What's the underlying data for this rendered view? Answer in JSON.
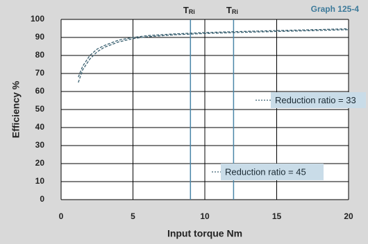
{
  "chart_data": {
    "type": "line",
    "graph_id": "Graph 125-4",
    "xlabel": "Input torque   Nm",
    "ylabel": "Efficiency %",
    "x": [
      1.2,
      1.5,
      2,
      2.5,
      3,
      4,
      5,
      6,
      8,
      10,
      12,
      15,
      18,
      20
    ],
    "series": [
      {
        "name": "Reduction ratio = 33",
        "color": "#3c6272",
        "values": [
          68,
          74,
          80,
          83.5,
          85.5,
          88.5,
          90,
          91,
          92,
          92.7,
          93.2,
          93.8,
          94.4,
          94.8
        ]
      },
      {
        "name": "Reduction ratio = 45",
        "color": "#3c6272",
        "values": [
          65,
          72,
          78,
          82,
          84.5,
          87.5,
          89.3,
          90.4,
          91.5,
          92.2,
          92.7,
          93.3,
          93.9,
          94.3
        ]
      }
    ],
    "markers": [
      {
        "x": 9,
        "label": "T",
        "subscript": "Ri"
      },
      {
        "x": 12,
        "label": "T",
        "subscript": "Ri"
      }
    ],
    "xlim": [
      0,
      20
    ],
    "xticks": [
      0,
      5,
      10,
      15,
      20
    ],
    "ylim": [
      0,
      100
    ],
    "yticks": [
      0,
      10,
      20,
      30,
      40,
      50,
      60,
      70,
      80,
      90,
      100
    ],
    "grid": true
  }
}
